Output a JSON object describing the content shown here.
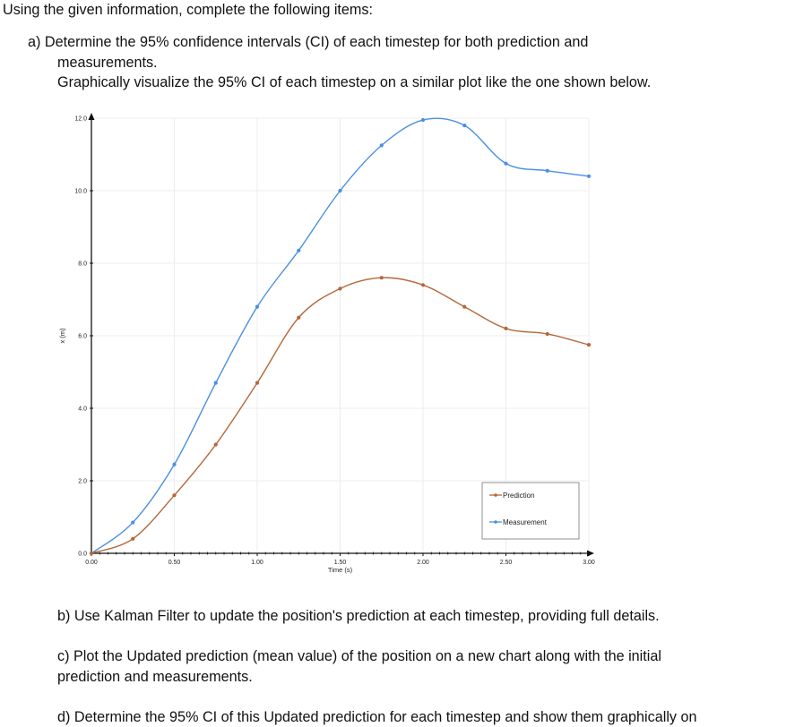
{
  "document": {
    "intro": "Using the given information, complete the following items:",
    "item_a_line1": "a)  Determine the 95% confidence intervals (CI) of each timestep for both prediction and",
    "item_a_line2": "measurements.",
    "item_a_line3": "Graphically visualize the 95% CI of each timestep on a similar plot like the one shown below.",
    "item_b": "b) Use Kalman Filter to update the position's prediction at each timestep, providing full details.",
    "item_c_line1": "c)  Plot the Updated prediction (mean value) of the position on a new chart along with the initial",
    "item_c_line2": "prediction and measurements.",
    "item_d": "d) Determine the 95% CI of this Updated prediction for each timestep and show them graphically on"
  },
  "chart_data": {
    "type": "line",
    "title": "",
    "xlabel": "Time (s)",
    "ylabel": "x (m)",
    "xlim": [
      0,
      3
    ],
    "ylim": [
      0,
      12
    ],
    "grid": true,
    "legend_position": "bottom-right",
    "x_ticks": [
      "0.00",
      "0.50",
      "1.00",
      "1.50",
      "2.00",
      "2.50",
      "3.00"
    ],
    "x_tick_values": [
      0,
      0.5,
      1,
      1.5,
      2,
      2.5,
      3
    ],
    "y_ticks": [
      "0.0",
      "2.0",
      "4.0",
      "6.0",
      "8.0",
      "10.0",
      "12.0"
    ],
    "y_tick_values": [
      0,
      2,
      4,
      6,
      8,
      10,
      12
    ],
    "x": [
      0,
      0.25,
      0.5,
      0.75,
      1.0,
      1.25,
      1.5,
      1.75,
      2.0,
      2.25,
      2.5,
      2.75,
      3.0
    ],
    "series": [
      {
        "name": "Prediction",
        "color": "#b5673a",
        "values": [
          0,
          0.4,
          1.6,
          3.0,
          4.7,
          6.5,
          7.3,
          7.6,
          7.4,
          6.8,
          6.2,
          6.05,
          5.75
        ]
      },
      {
        "name": "Measurement",
        "color": "#4a8fe0",
        "values": [
          0,
          0.85,
          2.45,
          4.7,
          6.8,
          8.35,
          10.0,
          11.25,
          11.95,
          11.8,
          10.75,
          10.55,
          10.4
        ]
      }
    ]
  }
}
